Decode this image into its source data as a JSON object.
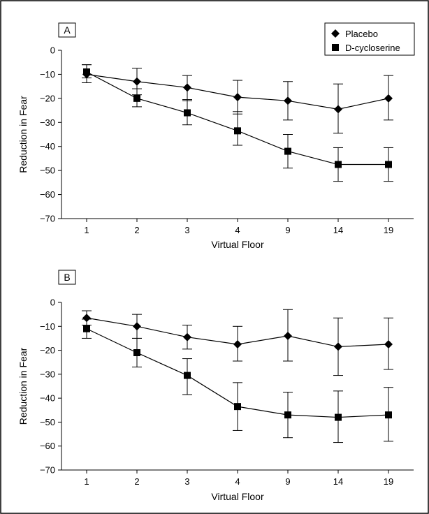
{
  "chart_data": [
    {
      "type": "line",
      "panel_label": "A",
      "xlabel": "Virtual Floor",
      "ylabel": "Reduction in Fear",
      "categories": [
        "1",
        "2",
        "3",
        "4",
        "9",
        "14",
        "19"
      ],
      "ylim": [
        -70,
        0
      ],
      "yticks": [
        "0",
        "−10",
        "−20",
        "−30",
        "−40",
        "−50",
        "−60",
        "−70"
      ],
      "legend_position": "top-right",
      "series": [
        {
          "name": "Placebo",
          "marker": "diamond",
          "values": [
            -10,
            -13,
            -15.5,
            -19.5,
            -21,
            -24.5,
            -20
          ],
          "error_low": [
            -13.5,
            -18.5,
            -21,
            -26.5,
            -29,
            -34.5,
            -29
          ],
          "error_high": [
            -6,
            -7.5,
            -10.5,
            -12.5,
            -13,
            -14,
            -10.5
          ]
        },
        {
          "name": "D-cycloserine",
          "marker": "square",
          "values": [
            -9,
            -20,
            -26,
            -33.5,
            -42,
            -47.5,
            -47.5
          ],
          "error_low": [
            -11.5,
            -23.5,
            -31,
            -39.5,
            -49,
            -54.5,
            -54.5
          ],
          "error_high": [
            -6,
            -16,
            -20.5,
            -25.5,
            -35,
            -40.5,
            -40.5
          ]
        }
      ]
    },
    {
      "type": "line",
      "panel_label": "B",
      "xlabel": "Virtual Floor",
      "ylabel": "Reduction in Fear",
      "categories": [
        "1",
        "2",
        "3",
        "4",
        "9",
        "14",
        "19"
      ],
      "ylim": [
        -70,
        0
      ],
      "yticks": [
        "0",
        "−10",
        "−20",
        "−30",
        "−40",
        "−50",
        "−60",
        "−70"
      ],
      "series": [
        {
          "name": "Placebo",
          "marker": "diamond",
          "values": [
            -6.5,
            -10,
            -14.5,
            -17.5,
            -14,
            -18.5,
            -17.5
          ],
          "error_low": [
            -9.5,
            -15,
            -19.5,
            -24.5,
            -24.5,
            -30.5,
            -28
          ],
          "error_high": [
            -3.5,
            -5,
            -9.5,
            -10,
            -3,
            -6.5,
            -6.5
          ]
        },
        {
          "name": "D-cycloserine",
          "marker": "square",
          "values": [
            -11,
            -21,
            -30.5,
            -43.5,
            -47,
            -48,
            -47
          ],
          "error_low": [
            -15,
            -27,
            -38.5,
            -53.5,
            -56.5,
            -58.5,
            -58
          ],
          "error_high": [
            -7,
            -15,
            -23.5,
            -33.5,
            -37.5,
            -37,
            -35.5
          ]
        }
      ]
    }
  ]
}
